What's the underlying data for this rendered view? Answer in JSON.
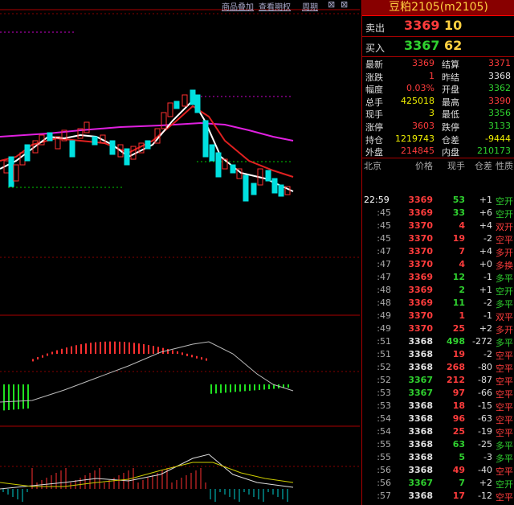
{
  "menu": [
    "商品叠加",
    "查看期权",
    "周期"
  ],
  "panel": {
    "title": "豆粕2105(m2105)",
    "ask": {
      "label": "卖出",
      "price": "3369",
      "volume": "10"
    },
    "bid": {
      "label": "买入",
      "price": "3367",
      "volume": "62"
    },
    "info": [
      [
        {
          "label": "最新",
          "value": "3369",
          "color": "#ff3c3c"
        },
        {
          "label": "结算",
          "value": "3371",
          "color": "#ff3c3c"
        }
      ],
      [
        {
          "label": "涨跌",
          "value": "1",
          "color": "#ff3c3c"
        },
        {
          "label": "昨结",
          "value": "3368",
          "color": "#e0e0e0"
        }
      ],
      [
        {
          "label": "幅度",
          "value": "0.03%",
          "color": "#ff3c3c"
        },
        {
          "label": "开盘",
          "value": "3362",
          "color": "#2fd12f"
        }
      ],
      [
        {
          "label": "总手",
          "value": "425018",
          "color": "#f0f000"
        },
        {
          "label": "最高",
          "value": "3390",
          "color": "#ff3c3c"
        }
      ],
      [
        {
          "label": "现手",
          "value": "3",
          "color": "#f0f000"
        },
        {
          "label": "最低",
          "value": "3356",
          "color": "#2fd12f"
        }
      ],
      [
        {
          "label": "涨停",
          "value": "3603",
          "color": "#ff3c3c"
        },
        {
          "label": "跌停",
          "value": "3133",
          "color": "#2fd12f"
        }
      ],
      [
        {
          "label": "持仓",
          "value": "1219743",
          "color": "#f0f000"
        },
        {
          "label": "仓差",
          "value": "-9444",
          "color": "#f0f000"
        }
      ],
      [
        {
          "label": "外盘",
          "value": "214845",
          "color": "#ff3c3c"
        },
        {
          "label": "内盘",
          "value": "210173",
          "color": "#2fd12f"
        }
      ]
    ],
    "ticks": {
      "header": [
        "北京",
        "价格",
        "现手",
        "仓差",
        "性质"
      ],
      "rows": [
        {
          "time": "22:59",
          "price": "3369",
          "volume": "53",
          "oi_change": "+1",
          "nature": "空开",
          "price_color": "#ff3c3c",
          "color": "#2fd12f"
        },
        {
          "time": ":45",
          "price": "3369",
          "volume": "33",
          "oi_change": "+6",
          "nature": "空开",
          "price_color": "#ff3c3c",
          "color": "#2fd12f"
        },
        {
          "time": ":45",
          "price": "3370",
          "volume": "4",
          "oi_change": "+4",
          "nature": "双开",
          "price_color": "#ff3c3c",
          "color": "#ff3c3c"
        },
        {
          "time": ":45",
          "price": "3370",
          "volume": "19",
          "oi_change": "-2",
          "nature": "空平",
          "price_color": "#ff3c3c",
          "color": "#ff3c3c"
        },
        {
          "time": ":47",
          "price": "3370",
          "volume": "7",
          "oi_change": "+4",
          "nature": "多开",
          "price_color": "#ff3c3c",
          "color": "#ff3c3c"
        },
        {
          "time": ":47",
          "price": "3370",
          "volume": "4",
          "oi_change": "+0",
          "nature": "多换",
          "price_color": "#ff3c3c",
          "color": "#ff3c3c"
        },
        {
          "time": ":47",
          "price": "3369",
          "volume": "12",
          "oi_change": "-1",
          "nature": "多平",
          "price_color": "#ff3c3c",
          "color": "#2fd12f"
        },
        {
          "time": ":48",
          "price": "3369",
          "volume": "2",
          "oi_change": "+1",
          "nature": "空开",
          "price_color": "#ff3c3c",
          "color": "#2fd12f"
        },
        {
          "time": ":48",
          "price": "3369",
          "volume": "11",
          "oi_change": "-2",
          "nature": "多平",
          "price_color": "#ff3c3c",
          "color": "#2fd12f"
        },
        {
          "time": ":49",
          "price": "3370",
          "volume": "1",
          "oi_change": "-1",
          "nature": "双平",
          "price_color": "#ff3c3c",
          "color": "#ff3c3c"
        },
        {
          "time": ":49",
          "price": "3370",
          "volume": "25",
          "oi_change": "+2",
          "nature": "多开",
          "price_color": "#ff3c3c",
          "color": "#ff3c3c"
        },
        {
          "time": ":51",
          "price": "3368",
          "volume": "498",
          "oi_change": "-272",
          "nature": "多平",
          "price_color": "#e0e0e0",
          "color": "#2fd12f"
        },
        {
          "time": ":51",
          "price": "3368",
          "volume": "19",
          "oi_change": "-2",
          "nature": "空平",
          "price_color": "#e0e0e0",
          "color": "#ff3c3c"
        },
        {
          "time": ":52",
          "price": "3368",
          "volume": "268",
          "oi_change": "-80",
          "nature": "空平",
          "price_color": "#e0e0e0",
          "color": "#ff3c3c"
        },
        {
          "time": ":52",
          "price": "3367",
          "volume": "212",
          "oi_change": "-87",
          "nature": "空平",
          "price_color": "#2fd12f",
          "color": "#ff3c3c"
        },
        {
          "time": ":53",
          "price": "3367",
          "volume": "97",
          "oi_change": "-66",
          "nature": "空平",
          "price_color": "#2fd12f",
          "color": "#ff3c3c"
        },
        {
          "time": ":53",
          "price": "3368",
          "volume": "18",
          "oi_change": "-15",
          "nature": "空平",
          "price_color": "#e0e0e0",
          "color": "#ff3c3c"
        },
        {
          "time": ":54",
          "price": "3368",
          "volume": "96",
          "oi_change": "-63",
          "nature": "空平",
          "price_color": "#e0e0e0",
          "color": "#ff3c3c"
        },
        {
          "time": ":54",
          "price": "3368",
          "volume": "25",
          "oi_change": "-19",
          "nature": "空平",
          "price_color": "#e0e0e0",
          "color": "#ff3c3c"
        },
        {
          "time": ":55",
          "price": "3368",
          "volume": "63",
          "oi_change": "-25",
          "nature": "多平",
          "price_color": "#e0e0e0",
          "color": "#2fd12f"
        },
        {
          "time": ":55",
          "price": "3368",
          "volume": "5",
          "oi_change": "-3",
          "nature": "多平",
          "price_color": "#e0e0e0",
          "color": "#2fd12f"
        },
        {
          "time": ":56",
          "price": "3368",
          "volume": "49",
          "oi_change": "-40",
          "nature": "空平",
          "price_color": "#e0e0e0",
          "color": "#ff3c3c"
        },
        {
          "time": ":56",
          "price": "3367",
          "volume": "7",
          "oi_change": "+2",
          "nature": "空开",
          "price_color": "#2fd12f",
          "color": "#2fd12f"
        },
        {
          "time": ":57",
          "price": "3368",
          "volume": "17",
          "oi_change": "-12",
          "nature": "空平",
          "price_color": "#e0e0e0",
          "color": "#ff3c3c"
        }
      ]
    }
  }
}
